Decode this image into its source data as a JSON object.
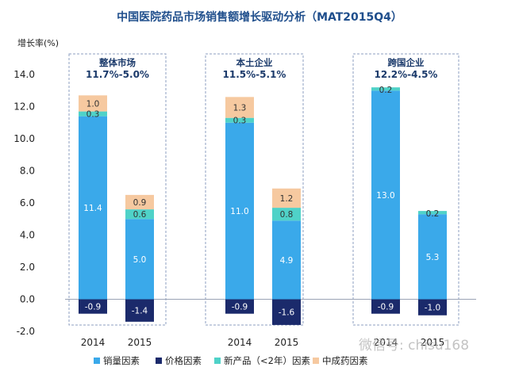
{
  "title": "中国医院药品市场销售额增长驱动分析（MAT2015Q4）",
  "y_axis_unit": "增长率(%)",
  "colors": {
    "volume": "#3aa9ea",
    "price": "#1b2a6b",
    "new_product": "#4fd2c8",
    "tcm": "#f6c9a0",
    "title": "#1f4e8c",
    "group_border": "#8e9fc0"
  },
  "watermark": "微信号: chisu168",
  "chart_data": {
    "type": "bar",
    "stacked": true,
    "title": "中国医院药品市场销售额增长驱动分析（MAT2015Q4）",
    "ylabel": "增长率(%)",
    "ylim": [
      -2.0,
      14.0
    ],
    "ytick_step": 2.0,
    "yticks": [
      "-2.0",
      "0.0",
      "2.0",
      "4.0",
      "6.0",
      "8.0",
      "10.0",
      "12.0",
      "14.0"
    ],
    "grid": false,
    "legend_position": "bottom",
    "groups": [
      {
        "title": "整体市场",
        "subtitle": "11.7%-5.0%",
        "categories": [
          "2014",
          "2015"
        ]
      },
      {
        "title": "本土企业",
        "subtitle": "11.5%-5.1%",
        "categories": [
          "2014",
          "2015"
        ]
      },
      {
        "title": "跨国企业",
        "subtitle": "12.2%-4.5%",
        "categories": [
          "2014",
          "2015"
        ]
      }
    ],
    "categories": [
      "2014",
      "2015",
      "2014",
      "2015",
      "2014",
      "2015"
    ],
    "series": [
      {
        "name": "销量因素",
        "key": "volume",
        "values": [
          11.4,
          5.0,
          11.0,
          4.9,
          13.0,
          5.3
        ],
        "labels": [
          "11.4",
          "5.0",
          "11.0",
          "4.9",
          "13.0",
          "5.3"
        ]
      },
      {
        "name": "价格因素",
        "key": "price",
        "values": [
          -0.9,
          -1.4,
          -0.9,
          -1.6,
          -0.9,
          -1.0
        ],
        "labels": [
          "-0.9",
          "-1.4",
          "-0.9",
          "-1.6",
          "-0.9",
          "-1.0"
        ]
      },
      {
        "name": "新产品（<2年）因素",
        "key": "new_product",
        "values": [
          0.3,
          0.6,
          0.3,
          0.8,
          0.2,
          0.2
        ],
        "labels": [
          "0.3",
          "0.6",
          "0.3",
          "0.8",
          "0.2",
          "0.2"
        ]
      },
      {
        "name": "中成药因素",
        "key": "tcm",
        "values": [
          1.0,
          0.9,
          1.3,
          1.2,
          0.0,
          0.0
        ],
        "labels": [
          "1.0",
          "0.9",
          "1.3",
          "1.2",
          "",
          ""
        ]
      }
    ]
  }
}
